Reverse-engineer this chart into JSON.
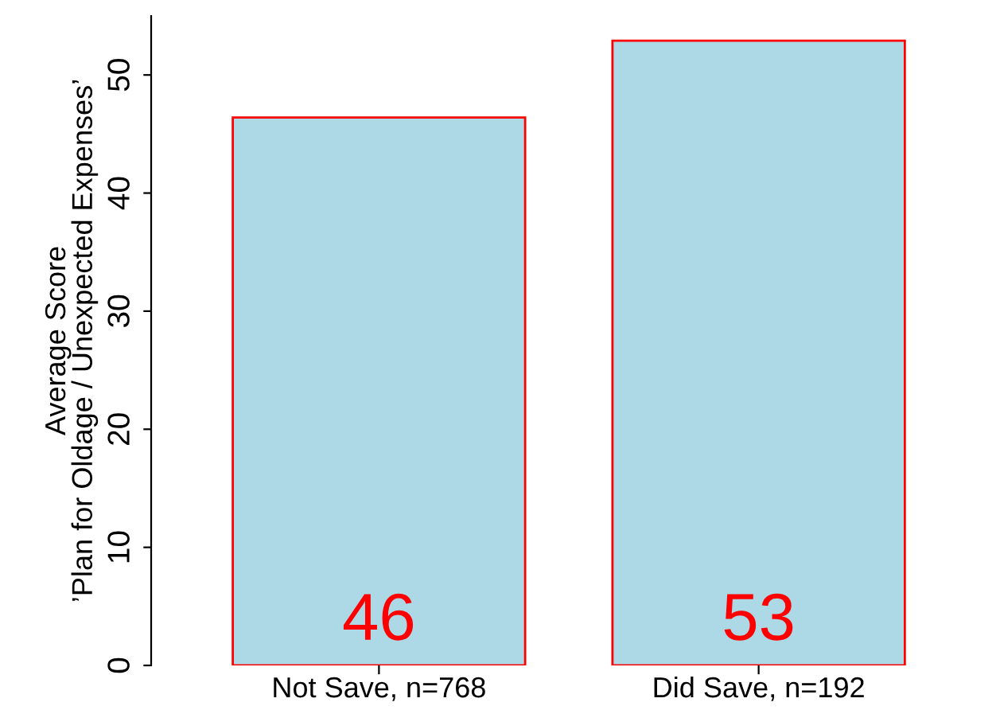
{
  "chart_data": {
    "type": "bar",
    "ylabel": "Average Score\n’Plan for Oldage / Unexpected Expenses’",
    "categories": [
      "Not Save, n=768",
      "Did Save, n=192"
    ],
    "values": [
      46.4,
      52.9
    ],
    "value_labels": [
      "46",
      "53"
    ],
    "color": "#add8e6",
    "ylim": [
      0,
      55
    ],
    "yticks": [
      0,
      10,
      20,
      30,
      40,
      50
    ],
    "grid": false
  }
}
